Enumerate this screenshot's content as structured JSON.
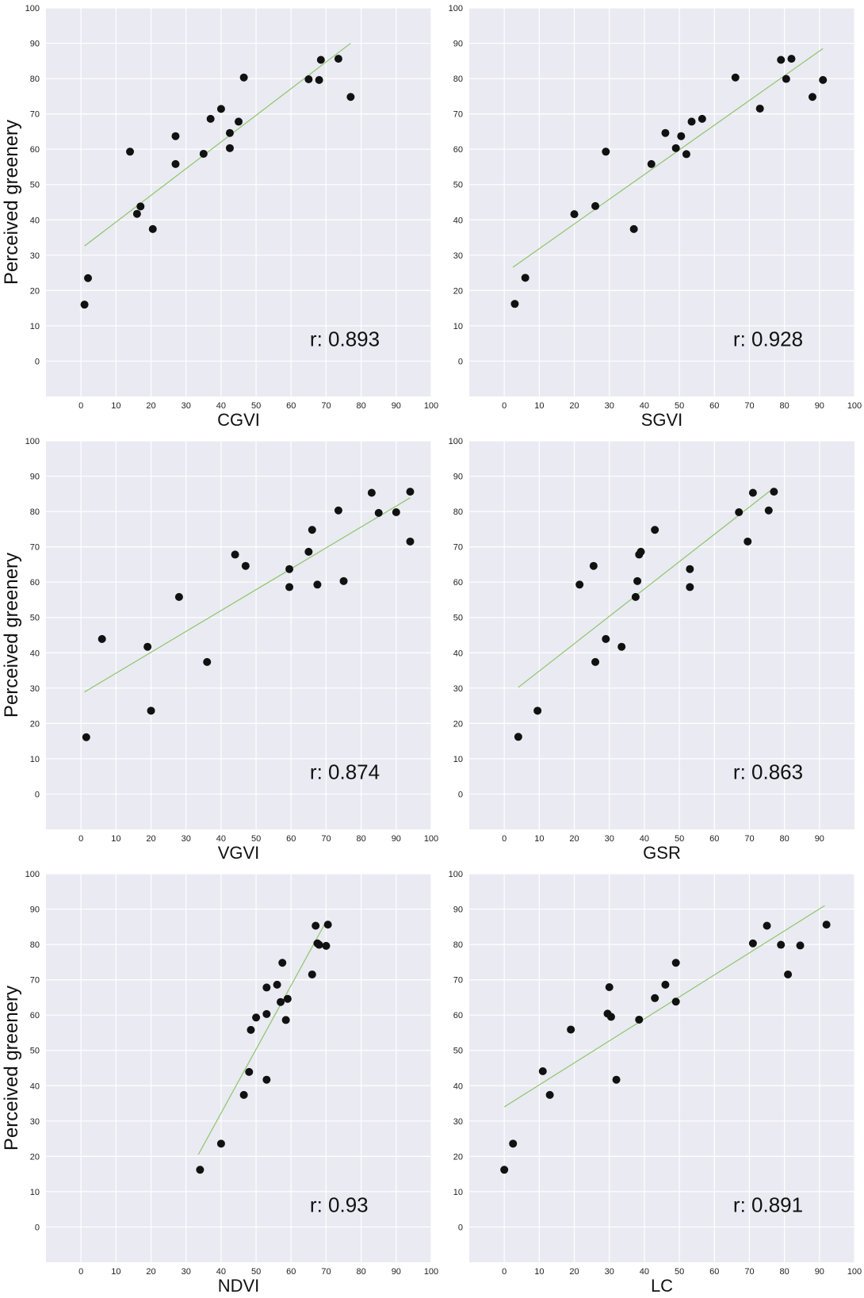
{
  "chart_data": [
    {
      "type": "scatter",
      "xlabel": "CGVI",
      "ylabel": "Perceived greenery",
      "annotation": "r: 0.893",
      "xlim": [
        -10,
        100
      ],
      "ylim": [
        -10,
        100
      ],
      "xticks": [
        0,
        10,
        20,
        30,
        40,
        50,
        60,
        70,
        80,
        90,
        100
      ],
      "yticks": [
        0,
        10,
        20,
        30,
        40,
        50,
        60,
        70,
        80,
        90,
        100
      ],
      "grid": true,
      "points": [
        [
          1,
          16
        ],
        [
          2,
          23.5
        ],
        [
          14,
          59.3
        ],
        [
          16,
          41.7
        ],
        [
          17,
          43.8
        ],
        [
          20.5,
          37.4
        ],
        [
          27,
          63.7
        ],
        [
          27,
          55.8
        ],
        [
          35,
          58.7
        ],
        [
          37,
          68.6
        ],
        [
          40,
          71.4
        ],
        [
          42.5,
          64.6
        ],
        [
          42.5,
          60.3
        ],
        [
          45,
          67.8
        ],
        [
          46.5,
          80.3
        ],
        [
          65,
          79.8
        ],
        [
          68,
          79.6
        ],
        [
          68.5,
          85.3
        ],
        [
          73.5,
          85.6
        ],
        [
          77,
          74.8
        ]
      ],
      "fit": [
        [
          1,
          32.6
        ],
        [
          77,
          90
        ]
      ]
    },
    {
      "type": "scatter",
      "xlabel": "SGVI",
      "ylabel": "",
      "annotation": "r: 0.928",
      "xlim": [
        -10,
        100
      ],
      "ylim": [
        -10,
        100
      ],
      "xticks": [
        0,
        10,
        20,
        30,
        40,
        50,
        60,
        70,
        80,
        90,
        100
      ],
      "yticks": [
        0,
        10,
        20,
        30,
        40,
        50,
        60,
        70,
        80,
        90,
        100
      ],
      "grid": true,
      "points": [
        [
          3,
          16.2
        ],
        [
          6,
          23.6
        ],
        [
          20,
          41.6
        ],
        [
          26,
          43.9
        ],
        [
          29,
          59.3
        ],
        [
          37,
          37.4
        ],
        [
          42,
          55.8
        ],
        [
          46,
          64.6
        ],
        [
          49,
          60.3
        ],
        [
          50.5,
          63.7
        ],
        [
          52,
          58.6
        ],
        [
          53.5,
          67.8
        ],
        [
          56.5,
          68.6
        ],
        [
          66,
          80.3
        ],
        [
          73,
          71.5
        ],
        [
          79,
          85.3
        ],
        [
          80.5,
          79.9
        ],
        [
          82,
          85.6
        ],
        [
          88,
          74.8
        ],
        [
          91,
          79.6
        ]
      ],
      "fit": [
        [
          2.5,
          26.6
        ],
        [
          91,
          88.5
        ]
      ]
    },
    {
      "type": "scatter",
      "xlabel": "VGVI",
      "ylabel": "Perceived greenery",
      "annotation": "r: 0.874",
      "xlim": [
        -10,
        100
      ],
      "ylim": [
        -10,
        100
      ],
      "xticks": [
        0,
        10,
        20,
        30,
        40,
        50,
        60,
        70,
        80,
        90,
        100
      ],
      "yticks": [
        0,
        10,
        20,
        30,
        40,
        50,
        60,
        70,
        80,
        90,
        100
      ],
      "grid": true,
      "points": [
        [
          1.5,
          16.1
        ],
        [
          6,
          43.9
        ],
        [
          19,
          41.7
        ],
        [
          20,
          23.6
        ],
        [
          28,
          55.8
        ],
        [
          36,
          37.4
        ],
        [
          44,
          67.8
        ],
        [
          47,
          64.6
        ],
        [
          59.5,
          63.7
        ],
        [
          59.5,
          58.6
        ],
        [
          65,
          68.6
        ],
        [
          66,
          74.8
        ],
        [
          67.5,
          59.3
        ],
        [
          73.5,
          80.3
        ],
        [
          75,
          60.3
        ],
        [
          83,
          85.3
        ],
        [
          85,
          79.6
        ],
        [
          90,
          79.8
        ],
        [
          94,
          85.6
        ],
        [
          94,
          71.5
        ]
      ],
      "fit": [
        [
          1,
          28.9
        ],
        [
          94,
          83.9
        ]
      ]
    },
    {
      "type": "scatter",
      "xlabel": "GSR",
      "ylabel": "",
      "annotation": "r: 0.863",
      "xlim": [
        -10,
        100
      ],
      "ylim": [
        -10,
        100
      ],
      "xticks": [
        0,
        10,
        20,
        30,
        40,
        50,
        60,
        70,
        80,
        90
      ],
      "yticks": [
        0,
        10,
        20,
        30,
        40,
        50,
        60,
        70,
        80,
        90,
        100
      ],
      "grid": true,
      "points": [
        [
          4,
          16.2
        ],
        [
          9.5,
          23.6
        ],
        [
          21.5,
          59.3
        ],
        [
          25.5,
          64.6
        ],
        [
          26,
          37.4
        ],
        [
          29,
          43.9
        ],
        [
          33.5,
          41.7
        ],
        [
          37.5,
          55.8
        ],
        [
          38,
          60.3
        ],
        [
          38.5,
          67.8
        ],
        [
          39,
          68.6
        ],
        [
          43,
          74.8
        ],
        [
          53,
          63.7
        ],
        [
          53,
          58.6
        ],
        [
          67,
          79.8
        ],
        [
          69.5,
          71.5
        ],
        [
          71,
          85.3
        ],
        [
          75.5,
          80.3
        ],
        [
          77,
          85.6
        ]
      ],
      "fit": [
        [
          4,
          30.2
        ],
        [
          77,
          86.7
        ]
      ]
    },
    {
      "type": "scatter",
      "xlabel": "NDVI",
      "ylabel": "Perceived greenery",
      "annotation": "r: 0.93",
      "xlim": [
        -10,
        100
      ],
      "ylim": [
        -10,
        100
      ],
      "xticks": [
        0,
        10,
        20,
        30,
        40,
        50,
        60,
        70,
        80,
        90,
        100
      ],
      "yticks": [
        0,
        10,
        20,
        30,
        40,
        50,
        60,
        70,
        80,
        90,
        100
      ],
      "grid": true,
      "points": [
        [
          34,
          16.2
        ],
        [
          40,
          23.6
        ],
        [
          46.5,
          37.4
        ],
        [
          48,
          43.9
        ],
        [
          48.5,
          55.8
        ],
        [
          50,
          59.3
        ],
        [
          53,
          41.7
        ],
        [
          53,
          60.3
        ],
        [
          53,
          67.8
        ],
        [
          56,
          68.6
        ],
        [
          57,
          63.7
        ],
        [
          57.5,
          74.8
        ],
        [
          58.5,
          58.6
        ],
        [
          59,
          64.6
        ],
        [
          66,
          71.5
        ],
        [
          67,
          85.3
        ],
        [
          67.5,
          80.3
        ],
        [
          68,
          79.9
        ],
        [
          70,
          79.6
        ],
        [
          70.5,
          85.6
        ]
      ],
      "fit": [
        [
          33.5,
          20.5
        ],
        [
          70,
          86.5
        ]
      ]
    },
    {
      "type": "scatter",
      "xlabel": "LC",
      "ylabel": "",
      "annotation": "r: 0.891",
      "xlim": [
        -10,
        100
      ],
      "ylim": [
        -10,
        100
      ],
      "xticks": [
        0,
        10,
        20,
        30,
        40,
        50,
        60,
        70,
        80,
        90,
        100
      ],
      "yticks": [
        0,
        10,
        20,
        30,
        40,
        50,
        60,
        70,
        80,
        90,
        100
      ],
      "grid": true,
      "points": [
        [
          0,
          16.2
        ],
        [
          2.5,
          23.6
        ],
        [
          11,
          44.1
        ],
        [
          13,
          37.4
        ],
        [
          19,
          55.9
        ],
        [
          29.5,
          60.4
        ],
        [
          30,
          67.9
        ],
        [
          30.5,
          59.5
        ],
        [
          32,
          41.7
        ],
        [
          38.5,
          58.7
        ],
        [
          43,
          64.8
        ],
        [
          46,
          68.6
        ],
        [
          49,
          63.8
        ],
        [
          49,
          74.8
        ],
        [
          71,
          80.3
        ],
        [
          75,
          85.3
        ],
        [
          79,
          79.9
        ],
        [
          81,
          71.5
        ],
        [
          84.5,
          79.7
        ],
        [
          92,
          85.6
        ]
      ],
      "fit": [
        [
          0,
          34
        ],
        [
          91.5,
          91
        ]
      ]
    }
  ],
  "colors": {
    "panel_bg": "#eaeaf2",
    "grid": "#ffffff",
    "point": "#111111",
    "fit_line": "#8cc56a",
    "text": "#222222"
  }
}
